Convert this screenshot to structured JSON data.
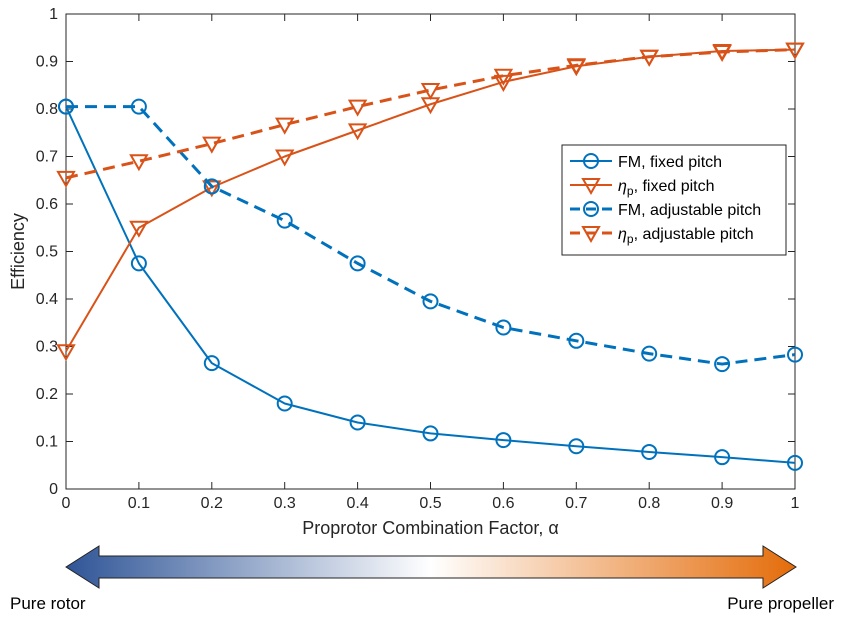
{
  "chart_data": {
    "type": "line",
    "xlabel": "Proprotor Combination Factor, α",
    "ylabel": "Efficiency",
    "xlim": [
      0,
      1
    ],
    "ylim": [
      0,
      1
    ],
    "xticks": [
      "0",
      "0.1",
      "0.2",
      "0.3",
      "0.4",
      "0.5",
      "0.6",
      "0.7",
      "0.8",
      "0.9",
      "1"
    ],
    "yticks": [
      "0",
      "0.1",
      "0.2",
      "0.3",
      "0.4",
      "0.5",
      "0.6",
      "0.7",
      "0.8",
      "0.9",
      "1"
    ],
    "x": [
      0,
      0.1,
      0.2,
      0.3,
      0.4,
      0.5,
      0.6,
      0.7,
      0.8,
      0.9,
      1.0
    ],
    "grid": false,
    "legend_position": "right",
    "series": [
      {
        "name": "FM, fixed pitch",
        "legend_prefix": "FM",
        "legend_suffix": ", fixed pitch",
        "color": "#0072BD",
        "marker": "circle",
        "linestyle": "solid",
        "values": [
          0.805,
          0.475,
          0.265,
          0.18,
          0.14,
          0.117,
          0.103,
          0.09,
          0.078,
          0.067,
          0.055
        ]
      },
      {
        "name": "ηp, fixed pitch",
        "legend_prefix": "η",
        "legend_sub": "p",
        "legend_suffix": ", fixed pitch",
        "color": "#D95319",
        "marker": "triangle-down",
        "linestyle": "solid",
        "values": [
          0.29,
          0.55,
          0.635,
          0.7,
          0.755,
          0.81,
          0.857,
          0.89,
          0.91,
          0.922,
          0.925
        ]
      },
      {
        "name": "FM, adjustable pitch",
        "legend_prefix": "FM",
        "legend_suffix": ", adjustable pitch",
        "color": "#0072BD",
        "marker": "circle",
        "linestyle": "dashed",
        "values": [
          0.805,
          0.805,
          0.637,
          0.565,
          0.475,
          0.395,
          0.34,
          0.312,
          0.285,
          0.263,
          0.283
        ]
      },
      {
        "name": "ηp, adjustable pitch",
        "legend_prefix": "η",
        "legend_sub": "p",
        "legend_suffix": ", adjustable pitch",
        "color": "#D95319",
        "marker": "triangle-down",
        "linestyle": "dashed",
        "values": [
          0.655,
          0.69,
          0.727,
          0.767,
          0.805,
          0.84,
          0.87,
          0.892,
          0.91,
          0.92,
          0.925
        ]
      }
    ]
  },
  "colors": {
    "blue": "#0072BD",
    "orange": "#D95319",
    "axis": "#262626"
  },
  "arrow": {
    "left_color": "#2F5597",
    "mid_color": "#FFFFFF",
    "right_color": "#E46C0A"
  },
  "captions": {
    "left": "Pure rotor",
    "right": "Pure propeller"
  }
}
